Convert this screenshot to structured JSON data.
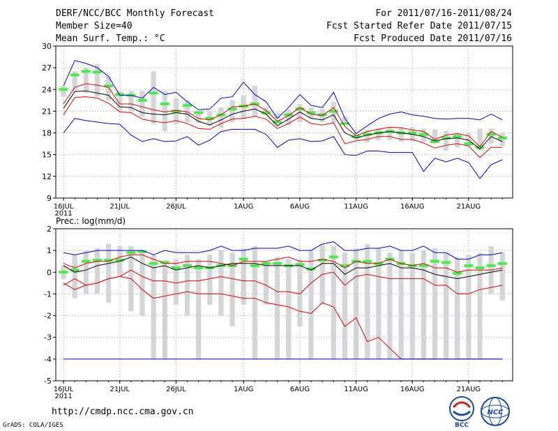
{
  "header": {
    "title": "DERF/NCC/BCC Monthly Forecast",
    "member": "Member Size=40",
    "variable": "Mean Surf. Temp.: °C",
    "period": "For 2011/07/16-2011/08/24",
    "refer": "Fcst Started Refer Date 2011/07/15",
    "produced": "Fcst Produced Date 2011/07/16"
  },
  "footer": {
    "url": "http://cmdp.ncc.cma.gov.cn",
    "credit": "GrADS: COLA/IGES",
    "logo_bcc": "BCC",
    "logo_ncc": "NCC"
  },
  "colors": {
    "box": "#d3d5d9",
    "median": "#44ee44",
    "max_min": "#0000cc",
    "pct": "#dd0000",
    "mean": "#000000",
    "grid": "#999999"
  },
  "chart_data": [
    {
      "type": "line",
      "title": "Mean Surf. Temp.: °C",
      "n_days": 40,
      "ylim": [
        9,
        30
      ],
      "yticks": [
        9,
        12,
        15,
        18,
        21,
        24,
        27,
        30
      ],
      "xticks": [
        {
          "day": 1,
          "label": "16JUL",
          "sub": "2011"
        },
        {
          "day": 6,
          "label": "21JUL"
        },
        {
          "day": 11,
          "label": "26JUL"
        },
        {
          "day": 17,
          "label": "1AUG"
        },
        {
          "day": 22,
          "label": "6AUG"
        },
        {
          "day": 27,
          "label": "11AUG"
        },
        {
          "day": 32,
          "label": "16AUG"
        },
        {
          "day": 37,
          "label": "21AUG"
        }
      ],
      "box_low": [
        23.0,
        23.8,
        23.5,
        23.0,
        22.5,
        21.0,
        21.0,
        20.2,
        19.2,
        18.2,
        19.2,
        19.5,
        19.4,
        19.0,
        18.7,
        19.5,
        20.0,
        20.3,
        20.5,
        20.0,
        19.0,
        19.5,
        20.0,
        19.5,
        19.3,
        19.6,
        17.0,
        16.7,
        17.0,
        17.0,
        16.8,
        16.8,
        16.8,
        16.7,
        15.5,
        16.0,
        16.1,
        15.5,
        16.5,
        16.2
      ],
      "box_high": [
        24.5,
        26.5,
        27.0,
        27.5,
        25.8,
        23.8,
        23.8,
        23.8,
        26.5,
        23.8,
        22.8,
        22.5,
        21.0,
        21.0,
        21.5,
        22.5,
        23.2,
        24.5,
        21.5,
        20.8,
        21.2,
        22.0,
        21.5,
        21.3,
        22.3,
        20.3,
        18.0,
        18.4,
        18.6,
        18.8,
        18.8,
        18.8,
        18.6,
        18.5,
        18.3,
        18.0,
        18.0,
        18.6,
        18.6,
        18.0
      ],
      "median": [
        24.0,
        26.0,
        26.5,
        26.4,
        24.5,
        23.3,
        23.2,
        22.5,
        23.5,
        22.0,
        21.0,
        21.8,
        20.8,
        20.0,
        20.5,
        21.3,
        21.7,
        22.0,
        20.8,
        19.5,
        20.5,
        21.3,
        20.8,
        20.5,
        21.0,
        19.3,
        17.5,
        17.8,
        18.0,
        18.2,
        18.0,
        18.0,
        17.8,
        16.8,
        17.3,
        17.5,
        16.5,
        16.0,
        17.8,
        17.3
      ],
      "series": [
        {
          "name": "max",
          "role": "max_min",
          "values": [
            24.5,
            28.0,
            27.6,
            27.0,
            25.8,
            23.2,
            23.2,
            22.8,
            24.3,
            23.3,
            23.6,
            22.3,
            21.2,
            21.3,
            22.8,
            23.0,
            25.0,
            23.3,
            22.3,
            20.0,
            21.5,
            23.3,
            21.8,
            21.5,
            23.6,
            20.0,
            17.9,
            19.0,
            20.0,
            20.6,
            20.9,
            20.5,
            20.3,
            20.0,
            19.9,
            20.0,
            20.0,
            19.8,
            20.6,
            19.8
          ]
        },
        {
          "name": "p90",
          "role": "pct",
          "values": [
            22.0,
            24.3,
            24.8,
            24.6,
            24.3,
            22.0,
            22.0,
            21.6,
            21.2,
            20.9,
            21.1,
            20.9,
            20.0,
            19.8,
            20.5,
            21.6,
            21.7,
            22.0,
            21.1,
            19.6,
            20.4,
            21.5,
            20.6,
            20.4,
            21.5,
            18.9,
            17.6,
            18.2,
            18.5,
            18.8,
            18.7,
            18.4,
            18.2,
            17.1,
            17.7,
            17.9,
            17.6,
            16.1,
            18.2,
            17.4
          ]
        },
        {
          "name": "mean",
          "role": "mean",
          "values": [
            21.4,
            23.7,
            23.8,
            23.5,
            23.2,
            21.6,
            21.5,
            20.8,
            20.6,
            20.5,
            20.8,
            20.6,
            19.6,
            19.1,
            19.8,
            20.6,
            21.0,
            21.3,
            20.6,
            19.0,
            19.9,
            20.9,
            20.0,
            19.8,
            20.5,
            18.0,
            17.3,
            17.7,
            18.0,
            18.2,
            18.0,
            17.8,
            17.5,
            16.9,
            17.2,
            17.3,
            17.0,
            15.8,
            17.5,
            16.8
          ]
        },
        {
          "name": "p10",
          "role": "pct",
          "values": [
            20.5,
            22.9,
            23.0,
            22.8,
            22.1,
            20.9,
            20.8,
            19.9,
            19.6,
            19.4,
            19.7,
            19.3,
            18.6,
            18.5,
            19.3,
            19.9,
            20.0,
            20.3,
            19.9,
            18.6,
            19.3,
            20.2,
            19.3,
            19.1,
            19.4,
            16.5,
            16.9,
            17.1,
            17.5,
            17.5,
            17.1,
            17.1,
            16.6,
            15.9,
            16.3,
            16.5,
            16.2,
            14.6,
            16.0,
            16.0
          ]
        },
        {
          "name": "min",
          "role": "max_min",
          "values": [
            18.0,
            20.0,
            19.7,
            19.5,
            19.3,
            19.2,
            17.7,
            16.8,
            17.2,
            16.8,
            16.9,
            17.5,
            16.3,
            17.0,
            18.2,
            18.5,
            18.5,
            18.5,
            17.8,
            16.0,
            17.0,
            17.2,
            16.8,
            16.9,
            17.5,
            15.0,
            14.9,
            15.5,
            15.5,
            15.3,
            15.3,
            15.3,
            12.7,
            14.5,
            14.0,
            14.5,
            13.9,
            11.7,
            13.6,
            14.3
          ]
        }
      ]
    },
    {
      "type": "line",
      "title": "Prec.: log(mm/d)",
      "n_days": 40,
      "ylim": [
        -5,
        2
      ],
      "yticks": [
        -5,
        -4,
        -3,
        -2,
        -1,
        0,
        1,
        2
      ],
      "xticks": [
        {
          "day": 1,
          "label": "16JUL",
          "sub": "2011"
        },
        {
          "day": 6,
          "label": "21JUL"
        },
        {
          "day": 11,
          "label": "26JUL"
        },
        {
          "day": 17,
          "label": "1AUG"
        },
        {
          "day": 22,
          "label": "6AUG"
        },
        {
          "day": 27,
          "label": "11AUG"
        },
        {
          "day": 32,
          "label": "16AUG"
        },
        {
          "day": 37,
          "label": "21AUG"
        }
      ],
      "box_low": [
        -0.3,
        -1.2,
        -1.0,
        -1.0,
        -1.4,
        -0.2,
        -1.8,
        -2.0,
        -4.0,
        -4.0,
        -1.5,
        -2.0,
        -4.0,
        -1.5,
        -2.0,
        -2.5,
        -1.5,
        -4.0,
        -1.5,
        -4.0,
        -4.0,
        -2.5,
        -4.0,
        -1.5,
        -4.0,
        -4.0,
        -4.0,
        -4.0,
        -4.0,
        -4.0,
        -4.0,
        -4.0,
        -4.0,
        -4.0,
        -4.0,
        -4.0,
        -4.0,
        -4.0,
        -1.0,
        -1.3
      ],
      "box_high": [
        0.3,
        0.8,
        1.0,
        1.1,
        1.3,
        1.2,
        1.2,
        0.9,
        0.8,
        0.5,
        0.6,
        0.8,
        0.6,
        0.8,
        1.0,
        0.9,
        1.1,
        1.2,
        0.5,
        0.7,
        0.6,
        0.6,
        1.0,
        1.3,
        1.2,
        0.9,
        1.1,
        1.3,
        1.1,
        0.9,
        1.0,
        0.9,
        1.0,
        1.1,
        0.9,
        0.7,
        0.8,
        0.9,
        1.2,
        0.9
      ],
      "median": [
        0.0,
        0.1,
        0.5,
        0.55,
        0.55,
        0.55,
        0.9,
        0.95,
        0.4,
        0.45,
        0.2,
        0.3,
        0.2,
        0.2,
        0.3,
        0.3,
        0.6,
        0.3,
        0.4,
        0.4,
        0.3,
        0.35,
        0.15,
        0.55,
        0.7,
        0.3,
        0.5,
        0.5,
        0.4,
        0.6,
        0.4,
        0.3,
        0.3,
        0.5,
        0.45,
        -0.05,
        0.3,
        0.2,
        0.3,
        0.4
      ],
      "series": [
        {
          "name": "max",
          "role": "max_min",
          "values": [
            0.9,
            0.8,
            0.9,
            1.0,
            1.0,
            1.0,
            1.0,
            1.0,
            0.8,
            1.0,
            0.9,
            0.9,
            0.9,
            1.0,
            1.2,
            1.0,
            1.0,
            1.1,
            1.1,
            1.1,
            1.2,
            1.0,
            1.0,
            1.3,
            1.4,
            1.0,
            1.0,
            1.1,
            1.1,
            1.2,
            1.0,
            1.0,
            1.2,
            0.9,
            0.9,
            0.6,
            0.6,
            0.8,
            0.8,
            0.9
          ]
        },
        {
          "name": "p90",
          "role": "pct",
          "values": [
            0.4,
            0.2,
            0.4,
            0.5,
            0.5,
            0.7,
            0.8,
            0.8,
            0.6,
            0.4,
            0.4,
            0.5,
            0.5,
            0.5,
            0.4,
            0.3,
            0.5,
            0.5,
            0.5,
            0.6,
            0.7,
            0.5,
            0.5,
            0.6,
            0.5,
            0.2,
            0.5,
            0.4,
            0.4,
            0.6,
            0.4,
            0.3,
            0.4,
            0.2,
            0.2,
            0.0,
            0.1,
            0.1,
            0.1,
            0.2
          ]
        },
        {
          "name": "mean",
          "role": "mean",
          "values": [
            0.3,
            0.0,
            0.1,
            0.3,
            0.4,
            0.5,
            0.7,
            0.4,
            0.2,
            0.3,
            0.1,
            0.2,
            0.3,
            0.2,
            0.3,
            0.4,
            0.4,
            0.4,
            0.3,
            0.3,
            0.3,
            0.3,
            0.1,
            0.4,
            0.4,
            -0.1,
            0.2,
            0.2,
            0.3,
            0.4,
            0.2,
            0.2,
            0.1,
            -0.1,
            -0.2,
            -0.3,
            -0.2,
            -0.1,
            0.0,
            0.1
          ]
        },
        {
          "name": "p10",
          "role": "pct",
          "values": [
            -0.6,
            -0.3,
            -0.6,
            -0.5,
            -0.3,
            -0.2,
            0.1,
            -0.2,
            -0.4,
            -0.4,
            -0.5,
            -0.4,
            -0.4,
            -0.3,
            -0.2,
            -0.3,
            -0.4,
            -0.4,
            -0.6,
            -0.9,
            -0.9,
            -1.0,
            -0.5,
            -0.1,
            0.0,
            -0.6,
            -0.2,
            -0.1,
            -0.2,
            -0.3,
            -0.3,
            -0.3,
            -0.3,
            -0.6,
            -0.6,
            -1.0,
            -1.0,
            -0.8,
            -0.7,
            -0.6
          ]
        },
        {
          "name": "p10_low",
          "role": "pct",
          "values": [
            -0.5,
            -0.8,
            -0.6,
            -0.5,
            -0.3,
            -0.2,
            -0.3,
            -0.8,
            -1.2,
            -1.1,
            -1.0,
            -0.9,
            -1.0,
            -1.0,
            -1.0,
            -1.1,
            -1.2,
            -1.2,
            -1.4,
            -1.5,
            -1.6,
            -1.8,
            -1.9,
            -1.4,
            -1.6,
            -2.5,
            -2.1,
            -3.2,
            -3.0,
            -3.5,
            -4.0,
            -4.0,
            -4.0,
            -4.0,
            -4.0,
            -4.0,
            -4.0,
            -4.0,
            -4.0,
            -4.0
          ]
        },
        {
          "name": "min",
          "role": "max_min",
          "values": [
            -4.0,
            -4.0,
            -4.0,
            -4.0,
            -4.0,
            -4.0,
            -4.0,
            -4.0,
            -4.0,
            -4.0,
            -4.0,
            -4.0,
            -4.0,
            -4.0,
            -4.0,
            -4.0,
            -4.0,
            -4.0,
            -4.0,
            -4.0,
            -4.0,
            -4.0,
            -4.0,
            -4.0,
            -4.0,
            -4.0,
            -4.0,
            -4.0,
            -4.0,
            -4.0,
            -4.0,
            -4.0,
            -4.0,
            -4.0,
            -4.0,
            -4.0,
            -4.0,
            -4.0,
            -4.0,
            -4.0
          ]
        }
      ]
    }
  ]
}
